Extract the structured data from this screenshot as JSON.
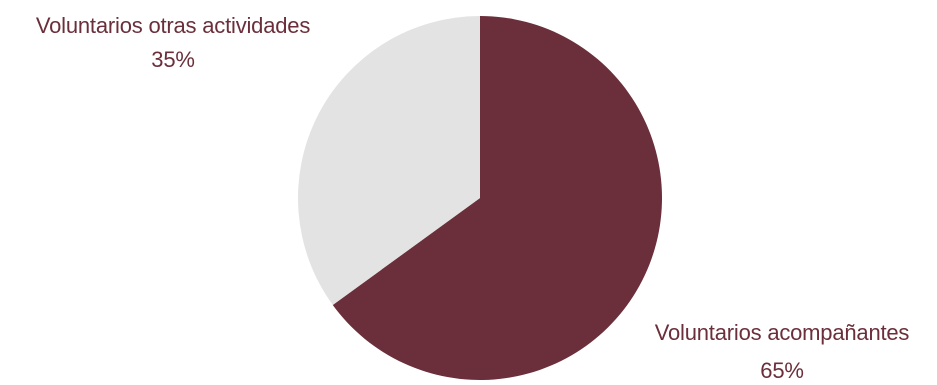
{
  "chart_data": {
    "type": "pie",
    "slices": [
      {
        "label": "Voluntarios acompañantes",
        "value": 65,
        "display": "65%",
        "color": "#6b2f3b"
      },
      {
        "label": "Voluntarios otras actividades",
        "value": 35,
        "display": "35%",
        "color": "#e3e3e3"
      }
    ],
    "label_color": "#6b2f3b"
  }
}
